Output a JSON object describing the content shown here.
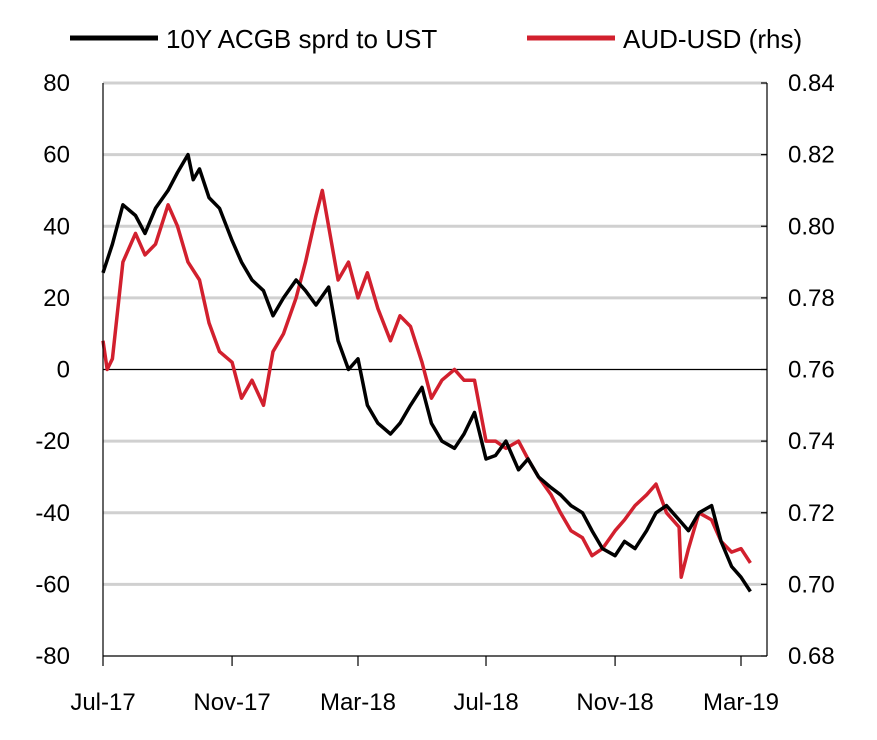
{
  "chart_data": {
    "type": "line",
    "title": "",
    "xlabel": "",
    "ylabel": "",
    "grid": true,
    "legend_position": "top",
    "x_ticks": [
      "Jul-17",
      "Nov-17",
      "Mar-18",
      "Jul-18",
      "Nov-18",
      "Mar-19"
    ],
    "y_left": {
      "min": -80,
      "max": 80,
      "step": 20,
      "ticks": [
        "-80",
        "-60",
        "-40",
        "-20",
        "0",
        "20",
        "40",
        "60",
        "80"
      ]
    },
    "y_right": {
      "min": 0.68,
      "max": 0.84,
      "step": 0.02,
      "ticks": [
        "0.68",
        "0.70",
        "0.72",
        "0.74",
        "0.76",
        "0.78",
        "0.80",
        "0.82",
        "0.84"
      ]
    },
    "series": [
      {
        "name": "10Y ACGB sprd to UST",
        "axis": "left",
        "color": "#000000",
        "x": [
          "2017-07-01",
          "2017-07-10",
          "2017-07-20",
          "2017-08-01",
          "2017-08-10",
          "2017-08-20",
          "2017-09-01",
          "2017-09-10",
          "2017-09-20",
          "2017-09-25",
          "2017-10-01",
          "2017-10-10",
          "2017-10-20",
          "2017-11-01",
          "2017-11-10",
          "2017-11-20",
          "2017-12-01",
          "2017-12-10",
          "2017-12-20",
          "2018-01-01",
          "2018-01-10",
          "2018-01-20",
          "2018-02-01",
          "2018-02-10",
          "2018-02-20",
          "2018-03-01",
          "2018-03-10",
          "2018-03-20",
          "2018-04-01",
          "2018-04-10",
          "2018-04-20",
          "2018-05-01",
          "2018-05-10",
          "2018-05-20",
          "2018-06-01",
          "2018-06-10",
          "2018-06-20",
          "2018-07-01",
          "2018-07-10",
          "2018-07-20",
          "2018-08-01",
          "2018-08-10",
          "2018-08-20",
          "2018-09-01",
          "2018-09-10",
          "2018-09-20",
          "2018-10-01",
          "2018-10-10",
          "2018-10-20",
          "2018-11-01",
          "2018-11-10",
          "2018-11-20",
          "2018-12-01",
          "2018-12-10",
          "2018-12-20",
          "2019-01-01",
          "2019-01-10",
          "2019-01-20",
          "2019-02-01",
          "2019-02-10",
          "2019-02-20",
          "2019-03-01",
          "2019-03-10"
        ],
        "values": [
          27,
          35,
          46,
          43,
          38,
          45,
          50,
          55,
          60,
          53,
          56,
          48,
          45,
          36,
          30,
          25,
          22,
          15,
          20,
          25,
          22,
          18,
          23,
          8,
          0,
          3,
          -10,
          -15,
          -18,
          -15,
          -10,
          -5,
          -15,
          -20,
          -22,
          -18,
          -12,
          -25,
          -24,
          -20,
          -28,
          -25,
          -30,
          -33,
          -35,
          -38,
          -40,
          -45,
          -50,
          -52,
          -48,
          -50,
          -45,
          -40,
          -38,
          -42,
          -45,
          -40,
          -38,
          -48,
          -55,
          -58,
          -62
        ]
      },
      {
        "name": "AUD-USD (rhs)",
        "axis": "right",
        "color": "#d2202e",
        "x": [
          "2017-07-01",
          "2017-07-05",
          "2017-07-10",
          "2017-07-20",
          "2017-08-01",
          "2017-08-10",
          "2017-08-20",
          "2017-09-01",
          "2017-09-10",
          "2017-09-20",
          "2017-10-01",
          "2017-10-10",
          "2017-10-20",
          "2017-11-01",
          "2017-11-10",
          "2017-11-20",
          "2017-12-01",
          "2017-12-10",
          "2017-12-20",
          "2018-01-01",
          "2018-01-10",
          "2018-01-20",
          "2018-01-26",
          "2018-02-01",
          "2018-02-10",
          "2018-02-20",
          "2018-03-01",
          "2018-03-10",
          "2018-03-20",
          "2018-04-01",
          "2018-04-10",
          "2018-04-20",
          "2018-05-01",
          "2018-05-10",
          "2018-05-20",
          "2018-06-01",
          "2018-06-10",
          "2018-06-20",
          "2018-07-01",
          "2018-07-10",
          "2018-07-20",
          "2018-08-01",
          "2018-08-10",
          "2018-08-20",
          "2018-09-01",
          "2018-09-10",
          "2018-09-20",
          "2018-10-01",
          "2018-10-10",
          "2018-10-20",
          "2018-11-01",
          "2018-11-10",
          "2018-11-20",
          "2018-12-01",
          "2018-12-10",
          "2018-12-20",
          "2019-01-01",
          "2019-01-03",
          "2019-01-10",
          "2019-01-20",
          "2019-02-01",
          "2019-02-10",
          "2019-02-20",
          "2019-03-01",
          "2019-03-10"
        ],
        "values": [
          0.768,
          0.76,
          0.763,
          0.79,
          0.798,
          0.792,
          0.795,
          0.806,
          0.8,
          0.79,
          0.785,
          0.773,
          0.765,
          0.762,
          0.752,
          0.757,
          0.75,
          0.765,
          0.77,
          0.78,
          0.79,
          0.803,
          0.81,
          0.8,
          0.785,
          0.79,
          0.78,
          0.787,
          0.777,
          0.768,
          0.775,
          0.772,
          0.762,
          0.752,
          0.757,
          0.76,
          0.757,
          0.757,
          0.74,
          0.74,
          0.738,
          0.74,
          0.735,
          0.73,
          0.725,
          0.72,
          0.715,
          0.713,
          0.708,
          0.71,
          0.715,
          0.718,
          0.722,
          0.725,
          0.728,
          0.72,
          0.716,
          0.702,
          0.71,
          0.72,
          0.718,
          0.712,
          0.709,
          0.71,
          0.706
        ]
      }
    ]
  }
}
